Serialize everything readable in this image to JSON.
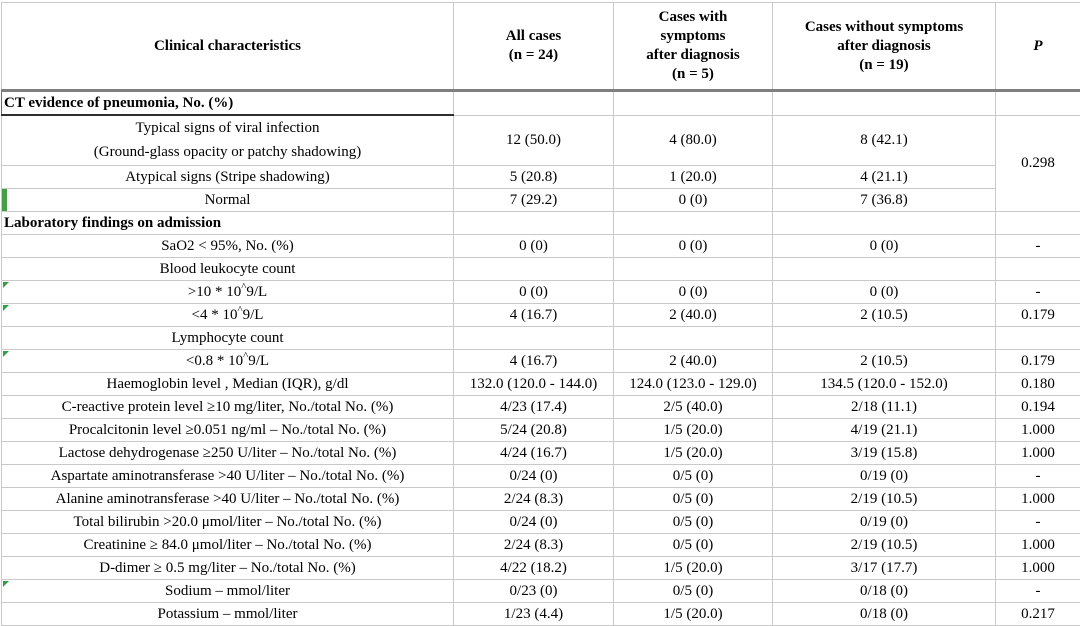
{
  "style": {
    "marker_triangle_green": "#2f9e44",
    "row_marker_green": "#43a047",
    "grid_line": "#c9c9c9",
    "header_rule": "#7f7f7f",
    "section_underline": "#2e2e2e",
    "text_color": "#000000"
  },
  "table": {
    "columns": [
      {
        "label": "Clinical characteristics"
      },
      {
        "label": "All cases\n(n = 24)"
      },
      {
        "label": "Cases with\nsymptoms\nafter diagnosis\n(n = 5)"
      },
      {
        "label": "Cases without symptoms\nafter diagnosis\n(n = 19)"
      },
      {
        "label": "P",
        "italic": true
      }
    ],
    "rows": [
      {
        "type": "section",
        "label": "CT evidence of pneumonia, No. (%)",
        "dark_bottom": true,
        "all_cases": "",
        "with_symptoms": "",
        "without_symptoms": "",
        "p": ""
      },
      {
        "type": "data",
        "tall": true,
        "label": "Typical signs of viral infection\n(Ground-glass opacity or patchy shadowing)",
        "all_cases": "12 (50.0)",
        "with_symptoms": "4 (80.0)",
        "without_symptoms": "8 (42.1)",
        "p": "0.298",
        "p_rowspan": 3
      },
      {
        "type": "data",
        "label": "Atypical signs (Stripe shadowing)",
        "all_cases": "5 (20.8)",
        "with_symptoms": "1 (20.0)",
        "without_symptoms": "4 (21.1)",
        "p": null
      },
      {
        "type": "data",
        "label": "Normal",
        "marker": "bar",
        "all_cases": "7 (29.2)",
        "with_symptoms": "0 (0)",
        "without_symptoms": "7 (36.8)",
        "p": null
      },
      {
        "type": "section",
        "label": "Laboratory findings on admission",
        "all_cases": "",
        "with_symptoms": "",
        "without_symptoms": "",
        "p": ""
      },
      {
        "type": "data",
        "label": "SaO2 < 95%, No. (%)",
        "all_cases": "0 (0)",
        "with_symptoms": "0 (0)",
        "without_symptoms": "0 (0)",
        "p": "-"
      },
      {
        "type": "data",
        "label": "Blood leukocyte count",
        "all_cases": "",
        "with_symptoms": "",
        "without_symptoms": "",
        "p": ""
      },
      {
        "type": "data",
        "label": ">10 * 10^9/L",
        "marker": "triangle",
        "all_cases": "0 (0)",
        "with_symptoms": "0 (0)",
        "without_symptoms": "0 (0)",
        "p": "-"
      },
      {
        "type": "data",
        "label": "<4 * 10^9/L",
        "marker": "triangle",
        "all_cases": "4 (16.7)",
        "with_symptoms": "2 (40.0)",
        "without_symptoms": "2 (10.5)",
        "p": "0.179"
      },
      {
        "type": "data",
        "label": "Lymphocyte count",
        "all_cases": "",
        "with_symptoms": "",
        "without_symptoms": "",
        "p": ""
      },
      {
        "type": "data",
        "label": "<0.8 * 10^9/L",
        "marker": "triangle",
        "all_cases": "4 (16.7)",
        "with_symptoms": "2 (40.0)",
        "without_symptoms": "2 (10.5)",
        "p": "0.179"
      },
      {
        "type": "data",
        "label": "Haemoglobin level , Median (IQR), g/dl",
        "all_cases": "132.0 (120.0 - 144.0)",
        "with_symptoms": "124.0 (123.0 - 129.0)",
        "without_symptoms": "134.5 (120.0 - 152.0)",
        "p": "0.180"
      },
      {
        "type": "data",
        "label": "C-reactive protein level ≥10 mg/liter, No./total No. (%)",
        "all_cases": "4/23 (17.4)",
        "with_symptoms": "2/5 (40.0)",
        "without_symptoms": "2/18 (11.1)",
        "p": "0.194"
      },
      {
        "type": "data",
        "label": "Procalcitonin level ≥0.051 ng/ml – No./total No. (%)",
        "all_cases": "5/24 (20.8)",
        "with_symptoms": "1/5 (20.0)",
        "without_symptoms": "4/19 (21.1)",
        "p": "1.000"
      },
      {
        "type": "data",
        "label": "Lactose dehydrogenase ≥250 U/liter – No./total No. (%)",
        "all_cases": "4/24 (16.7)",
        "with_symptoms": "1/5 (20.0)",
        "without_symptoms": "3/19 (15.8)",
        "p": "1.000"
      },
      {
        "type": "data",
        "label": "Aspartate aminotransferase >40 U/liter – No./total No. (%)",
        "all_cases": "0/24 (0)",
        "with_symptoms": "0/5 (0)",
        "without_symptoms": "0/19 (0)",
        "p": "-"
      },
      {
        "type": "data",
        "label": "Alanine aminotransferase >40 U/liter – No./total No. (%)",
        "all_cases": "2/24 (8.3)",
        "with_symptoms": "0/5 (0)",
        "without_symptoms": "2/19 (10.5)",
        "p": "1.000"
      },
      {
        "type": "data",
        "label": "Total bilirubin >20.0 μmol/liter – No./total No. (%)",
        "all_cases": "0/24 (0)",
        "with_symptoms": "0/5 (0)",
        "without_symptoms": "0/19 (0)",
        "p": "-"
      },
      {
        "type": "data",
        "label": "Creatinine ≥ 84.0 μmol/liter – No./total No. (%)",
        "all_cases": "2/24 (8.3)",
        "with_symptoms": "0/5 (0)",
        "without_symptoms": "2/19 (10.5)",
        "p": "1.000"
      },
      {
        "type": "data",
        "label": "D-dimer ≥ 0.5 mg/liter – No./total No. (%)",
        "all_cases": "4/22 (18.2)",
        "with_symptoms": "1/5 (20.0)",
        "without_symptoms": "3/17 (17.7)",
        "p": "1.000"
      },
      {
        "type": "data",
        "label": "Sodium – mmol/liter",
        "marker": "triangle",
        "all_cases": "0/23 (0)",
        "with_symptoms": "0/5 (0)",
        "without_symptoms": "0/18 (0)",
        "p": "-"
      },
      {
        "type": "data",
        "label": "Potassium – mmol/liter",
        "all_cases": "1/23 (4.4)",
        "with_symptoms": "1/5 (20.0)",
        "without_symptoms": "0/18 (0)",
        "p": "0.217"
      }
    ]
  }
}
